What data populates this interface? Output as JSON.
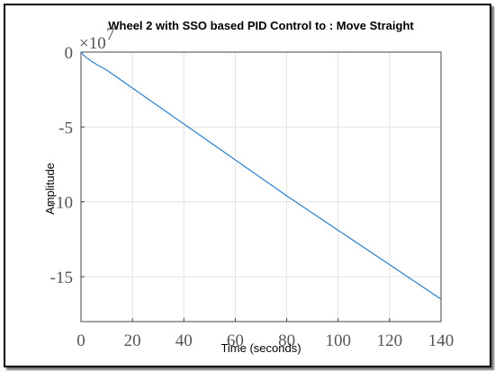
{
  "chart_data": {
    "type": "line",
    "title": "Wheel 2 with SSO based PID Control to : Move Straight",
    "xlabel": "Time (seconds)",
    "ylabel": "Amplitude",
    "y_exponent_label": "×10",
    "y_exponent_power": "7",
    "xlim": [
      0,
      140
    ],
    "ylim": [
      -18,
      0
    ],
    "xticks": [
      0,
      20,
      40,
      60,
      80,
      100,
      120,
      140
    ],
    "xtick_labels": [
      "0",
      "20",
      "40",
      "60",
      "80",
      "100",
      "120",
      "140"
    ],
    "yticks": [
      0,
      -5,
      -10,
      -15
    ],
    "ytick_labels": [
      "0",
      "-5",
      "-10",
      "-15"
    ],
    "grid": true,
    "series": [
      {
        "color": "#2a7fc9",
        "x": [
          0,
          1,
          2,
          4,
          6,
          10,
          20,
          40,
          60,
          80,
          100,
          120,
          140
        ],
        "y": [
          0,
          -0.2,
          -0.35,
          -0.6,
          -0.82,
          -1.2,
          -2.4,
          -4.8,
          -7.2,
          -9.6,
          -11.9,
          -14.2,
          -16.5
        ]
      }
    ]
  }
}
